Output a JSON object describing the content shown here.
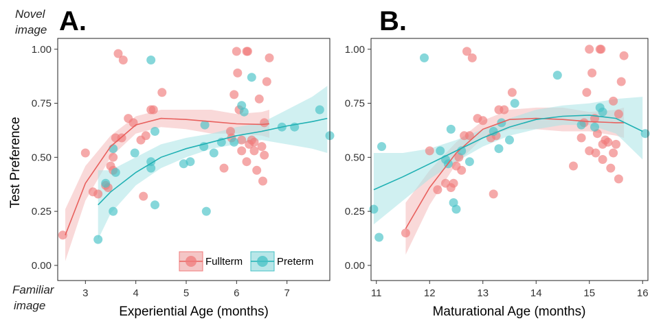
{
  "annotations": {
    "top": [
      "Novel",
      "image"
    ],
    "bottom": [
      "Familiar",
      "image"
    ]
  },
  "colors": {
    "fullterm": "#f07b7b",
    "fullterm_line": "#e8605d",
    "fullterm_band": "#f4b9b9",
    "preterm": "#45c2c6",
    "preterm_line": "#1fb0b3",
    "preterm_band": "#a9e3e5"
  },
  "chart_data": [
    {
      "type": "scatter",
      "panel": "A.",
      "xlabel": "Experiential Age (months)",
      "ylabel": "Test Preference",
      "xlim": [
        2.45,
        7.85
      ],
      "ylim": [
        -0.07,
        1.05
      ],
      "xticks": [
        3,
        4,
        5,
        6,
        7
      ],
      "yticks": [
        0.0,
        0.25,
        0.5,
        0.75,
        1.0
      ],
      "ytick_labels": [
        "0.00",
        "0.25",
        "0.50",
        "0.75",
        "1.00"
      ],
      "grid": false,
      "legend": {
        "placement": "bottom-right",
        "entries": [
          {
            "label": "Fullterm",
            "color_key": "fullterm"
          },
          {
            "label": "Preterm",
            "color_key": "preterm"
          }
        ]
      },
      "series": [
        {
          "name": "Fullterm",
          "color_key": "fullterm",
          "points": [
            [
              2.55,
              0.14
            ],
            [
              3.0,
              0.52
            ],
            [
              3.15,
              0.34
            ],
            [
              3.25,
              0.33
            ],
            [
              3.4,
              0.37
            ],
            [
              3.45,
              0.36
            ],
            [
              3.5,
              0.46
            ],
            [
              3.55,
              0.5
            ],
            [
              3.55,
              0.44
            ],
            [
              3.6,
              0.59
            ],
            [
              3.65,
              0.98
            ],
            [
              3.72,
              0.59
            ],
            [
              3.75,
              0.95
            ],
            [
              3.85,
              0.68
            ],
            [
              3.95,
              0.66
            ],
            [
              4.1,
              0.58
            ],
            [
              4.15,
              0.32
            ],
            [
              4.2,
              0.6
            ],
            [
              4.3,
              0.72
            ],
            [
              4.35,
              0.72
            ],
            [
              4.52,
              0.8
            ],
            [
              5.88,
              0.62
            ],
            [
              5.9,
              0.59
            ],
            [
              5.95,
              0.79
            ],
            [
              6.0,
              0.99
            ],
            [
              6.02,
              0.89
            ],
            [
              6.05,
              0.72
            ],
            [
              6.1,
              0.58
            ],
            [
              6.2,
              0.99
            ],
            [
              6.22,
              0.99
            ],
            [
              6.25,
              0.56
            ],
            [
              6.3,
              0.58
            ],
            [
              6.35,
              0.57
            ],
            [
              6.4,
              0.44
            ],
            [
              6.45,
              0.77
            ],
            [
              6.5,
              0.55
            ],
            [
              6.55,
              0.66
            ],
            [
              6.6,
              0.85
            ],
            [
              6.65,
              0.96
            ],
            [
              5.75,
              0.45
            ],
            [
              6.1,
              0.53
            ],
            [
              6.52,
              0.39
            ],
            [
              6.2,
              0.48
            ],
            [
              6.35,
              0.53
            ],
            [
              6.55,
              0.51
            ]
          ],
          "fit": [
            [
              2.6,
              0.14
            ],
            [
              3.0,
              0.38
            ],
            [
              3.5,
              0.55
            ],
            [
              4.0,
              0.65
            ],
            [
              4.5,
              0.68
            ],
            [
              5.0,
              0.675
            ],
            [
              5.5,
              0.665
            ],
            [
              6.0,
              0.655
            ],
            [
              6.5,
              0.652
            ],
            [
              6.65,
              0.655
            ]
          ],
          "band": [
            [
              2.6,
              0.02,
              0.26
            ],
            [
              3.0,
              0.3,
              0.46
            ],
            [
              3.5,
              0.5,
              0.6
            ],
            [
              4.0,
              0.61,
              0.69
            ],
            [
              4.5,
              0.64,
              0.72
            ],
            [
              5.0,
              0.63,
              0.72
            ],
            [
              5.5,
              0.61,
              0.72
            ],
            [
              6.0,
              0.61,
              0.7
            ],
            [
              6.5,
              0.6,
              0.71
            ],
            [
              6.65,
              0.59,
              0.72
            ]
          ]
        },
        {
          "name": "Preterm",
          "color_key": "preterm",
          "points": [
            [
              3.25,
              0.12
            ],
            [
              3.4,
              0.38
            ],
            [
              3.55,
              0.25
            ],
            [
              3.55,
              0.54
            ],
            [
              3.6,
              0.43
            ],
            [
              3.98,
              0.52
            ],
            [
              4.3,
              0.95
            ],
            [
              4.3,
              0.48
            ],
            [
              4.3,
              0.45
            ],
            [
              4.38,
              0.28
            ],
            [
              4.38,
              0.62
            ],
            [
              4.95,
              0.47
            ],
            [
              5.08,
              0.48
            ],
            [
              5.35,
              0.55
            ],
            [
              5.37,
              0.65
            ],
            [
              5.4,
              0.25
            ],
            [
              5.55,
              0.52
            ],
            [
              5.7,
              0.57
            ],
            [
              5.95,
              0.57
            ],
            [
              6.1,
              0.74
            ],
            [
              6.15,
              0.71
            ],
            [
              6.3,
              0.87
            ],
            [
              6.9,
              0.64
            ],
            [
              7.15,
              0.64
            ],
            [
              7.65,
              0.72
            ],
            [
              7.85,
              0.6
            ]
          ],
          "fit": [
            [
              3.25,
              0.28
            ],
            [
              3.5,
              0.34
            ],
            [
              4.0,
              0.43
            ],
            [
              4.5,
              0.5
            ],
            [
              5.0,
              0.54
            ],
            [
              5.5,
              0.57
            ],
            [
              6.0,
              0.6
            ],
            [
              6.5,
              0.62
            ],
            [
              7.0,
              0.645
            ],
            [
              7.5,
              0.665
            ],
            [
              7.8,
              0.68
            ]
          ],
          "band": [
            [
              3.25,
              0.12,
              0.44
            ],
            [
              3.5,
              0.24,
              0.44
            ],
            [
              4.0,
              0.37,
              0.5
            ],
            [
              4.5,
              0.45,
              0.56
            ],
            [
              5.0,
              0.5,
              0.59
            ],
            [
              5.5,
              0.54,
              0.61
            ],
            [
              6.0,
              0.56,
              0.64
            ],
            [
              6.5,
              0.58,
              0.66
            ],
            [
              7.0,
              0.56,
              0.72
            ],
            [
              7.5,
              0.54,
              0.78
            ],
            [
              7.8,
              0.52,
              0.83
            ]
          ]
        }
      ]
    },
    {
      "type": "scatter",
      "panel": "B.",
      "xlabel": "Maturational Age (months)",
      "ylabel": "",
      "xlim": [
        10.9,
        16.1
      ],
      "ylim": [
        -0.07,
        1.05
      ],
      "xticks": [
        11,
        12,
        13,
        14,
        15,
        16
      ],
      "yticks": [
        0.0,
        0.25,
        0.5,
        0.75,
        1.0
      ],
      "ytick_labels": [
        "0.00",
        "0.25",
        "0.50",
        "0.75",
        "1.00"
      ],
      "grid": false,
      "series": [
        {
          "name": "Fullterm",
          "color_key": "fullterm",
          "points": [
            [
              11.55,
              0.15
            ],
            [
              12.0,
              0.53
            ],
            [
              12.15,
              0.35
            ],
            [
              12.3,
              0.38
            ],
            [
              12.4,
              0.36
            ],
            [
              12.45,
              0.38
            ],
            [
              12.5,
              0.46
            ],
            [
              12.55,
              0.5
            ],
            [
              12.6,
              0.44
            ],
            [
              12.65,
              0.6
            ],
            [
              12.7,
              0.99
            ],
            [
              12.75,
              0.6
            ],
            [
              12.8,
              0.96
            ],
            [
              12.9,
              0.68
            ],
            [
              13.0,
              0.67
            ],
            [
              13.15,
              0.59
            ],
            [
              13.2,
              0.33
            ],
            [
              13.25,
              0.6
            ],
            [
              13.3,
              0.72
            ],
            [
              13.4,
              0.72
            ],
            [
              13.55,
              0.8
            ],
            [
              14.7,
              0.46
            ],
            [
              14.85,
              0.59
            ],
            [
              14.9,
              0.66
            ],
            [
              14.95,
              0.8
            ],
            [
              15.0,
              1.0
            ],
            [
              15.05,
              0.89
            ],
            [
              15.1,
              0.68
            ],
            [
              15.15,
              0.61
            ],
            [
              15.2,
              1.0
            ],
            [
              15.22,
              1.0
            ],
            [
              15.25,
              0.56
            ],
            [
              15.3,
              0.58
            ],
            [
              15.35,
              0.57
            ],
            [
              15.4,
              0.45
            ],
            [
              15.45,
              0.76
            ],
            [
              15.5,
              0.56
            ],
            [
              15.55,
              0.7
            ],
            [
              15.6,
              0.85
            ],
            [
              15.65,
              0.97
            ],
            [
              15.0,
              0.53
            ],
            [
              15.25,
              0.49
            ],
            [
              15.55,
              0.4
            ],
            [
              15.45,
              0.52
            ],
            [
              15.12,
              0.52
            ]
          ],
          "fit": [
            [
              11.55,
              0.17
            ],
            [
              12.0,
              0.36
            ],
            [
              12.5,
              0.52
            ],
            [
              13.0,
              0.63
            ],
            [
              13.5,
              0.675
            ],
            [
              14.0,
              0.68
            ],
            [
              14.5,
              0.675
            ],
            [
              15.0,
              0.665
            ],
            [
              15.5,
              0.66
            ],
            [
              15.65,
              0.66
            ]
          ],
          "band": [
            [
              11.55,
              0.05,
              0.29
            ],
            [
              12.0,
              0.28,
              0.44
            ],
            [
              12.5,
              0.47,
              0.57
            ],
            [
              13.0,
              0.59,
              0.67
            ],
            [
              13.5,
              0.63,
              0.72
            ],
            [
              14.0,
              0.63,
              0.73
            ],
            [
              14.5,
              0.62,
              0.73
            ],
            [
              15.0,
              0.62,
              0.71
            ],
            [
              15.5,
              0.6,
              0.72
            ],
            [
              15.65,
              0.59,
              0.73
            ]
          ]
        },
        {
          "name": "Preterm",
          "color_key": "preterm",
          "points": [
            [
              10.95,
              0.26
            ],
            [
              11.05,
              0.13
            ],
            [
              11.1,
              0.55
            ],
            [
              11.9,
              0.96
            ],
            [
              12.2,
              0.53
            ],
            [
              12.3,
              0.49
            ],
            [
              12.35,
              0.47
            ],
            [
              12.4,
              0.63
            ],
            [
              12.45,
              0.29
            ],
            [
              12.5,
              0.26
            ],
            [
              12.6,
              0.53
            ],
            [
              12.75,
              0.48
            ],
            [
              13.2,
              0.62
            ],
            [
              13.3,
              0.54
            ],
            [
              13.35,
              0.66
            ],
            [
              13.5,
              0.58
            ],
            [
              13.6,
              0.75
            ],
            [
              14.4,
              0.88
            ],
            [
              14.85,
              0.65
            ],
            [
              15.1,
              0.64
            ],
            [
              15.2,
              0.73
            ],
            [
              15.25,
              0.71
            ],
            [
              16.05,
              0.61
            ]
          ],
          "fit": [
            [
              10.95,
              0.35
            ],
            [
              11.5,
              0.41
            ],
            [
              12.0,
              0.47
            ],
            [
              12.5,
              0.53
            ],
            [
              13.0,
              0.59
            ],
            [
              13.5,
              0.64
            ],
            [
              14.0,
              0.675
            ],
            [
              14.5,
              0.69
            ],
            [
              15.0,
              0.695
            ],
            [
              15.5,
              0.68
            ],
            [
              16.0,
              0.62
            ]
          ],
          "band": [
            [
              10.95,
              0.19,
              0.52
            ],
            [
              11.5,
              0.3,
              0.52
            ],
            [
              12.0,
              0.4,
              0.54
            ],
            [
              12.5,
              0.48,
              0.58
            ],
            [
              13.0,
              0.55,
              0.63
            ],
            [
              13.5,
              0.6,
              0.68
            ],
            [
              14.0,
              0.63,
              0.72
            ],
            [
              14.5,
              0.65,
              0.74
            ],
            [
              15.0,
              0.65,
              0.75
            ],
            [
              15.5,
              0.61,
              0.77
            ],
            [
              16.0,
              0.49,
              0.78
            ]
          ]
        }
      ]
    }
  ]
}
